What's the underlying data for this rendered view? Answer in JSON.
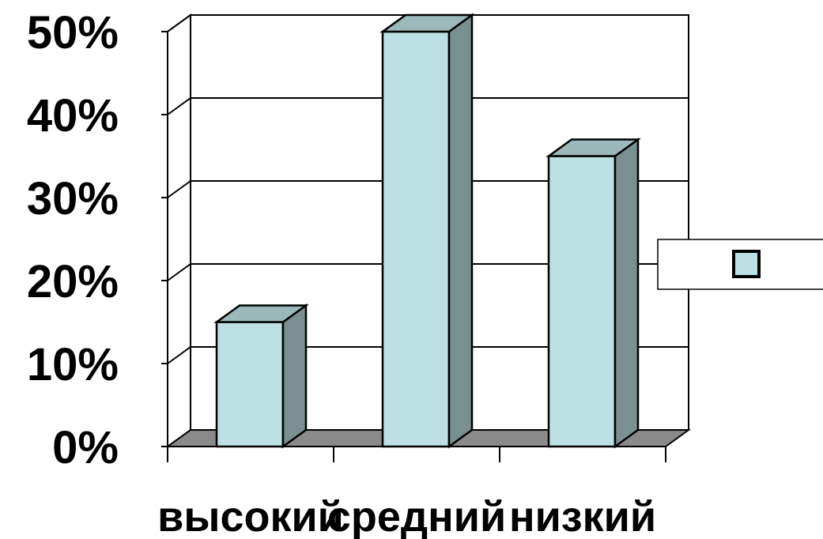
{
  "chart_data": {
    "type": "bar",
    "style": "3d-column",
    "categories": [
      "высокий",
      "средний",
      "низкий"
    ],
    "series": [
      {
        "values": [
          15,
          50,
          35
        ],
        "color": "#bde0e4",
        "side_color": "#7a9090",
        "top_color": "#9bb8bb"
      }
    ],
    "y_ticks": [
      "0%",
      "10%",
      "20%",
      "30%",
      "40%",
      "50%"
    ],
    "ylim": [
      0,
      50
    ],
    "y_unit": "%",
    "grid": true,
    "legend": {
      "placement": "right",
      "entries": [
        ""
      ]
    },
    "floor_color": "#8a8a8a"
  }
}
